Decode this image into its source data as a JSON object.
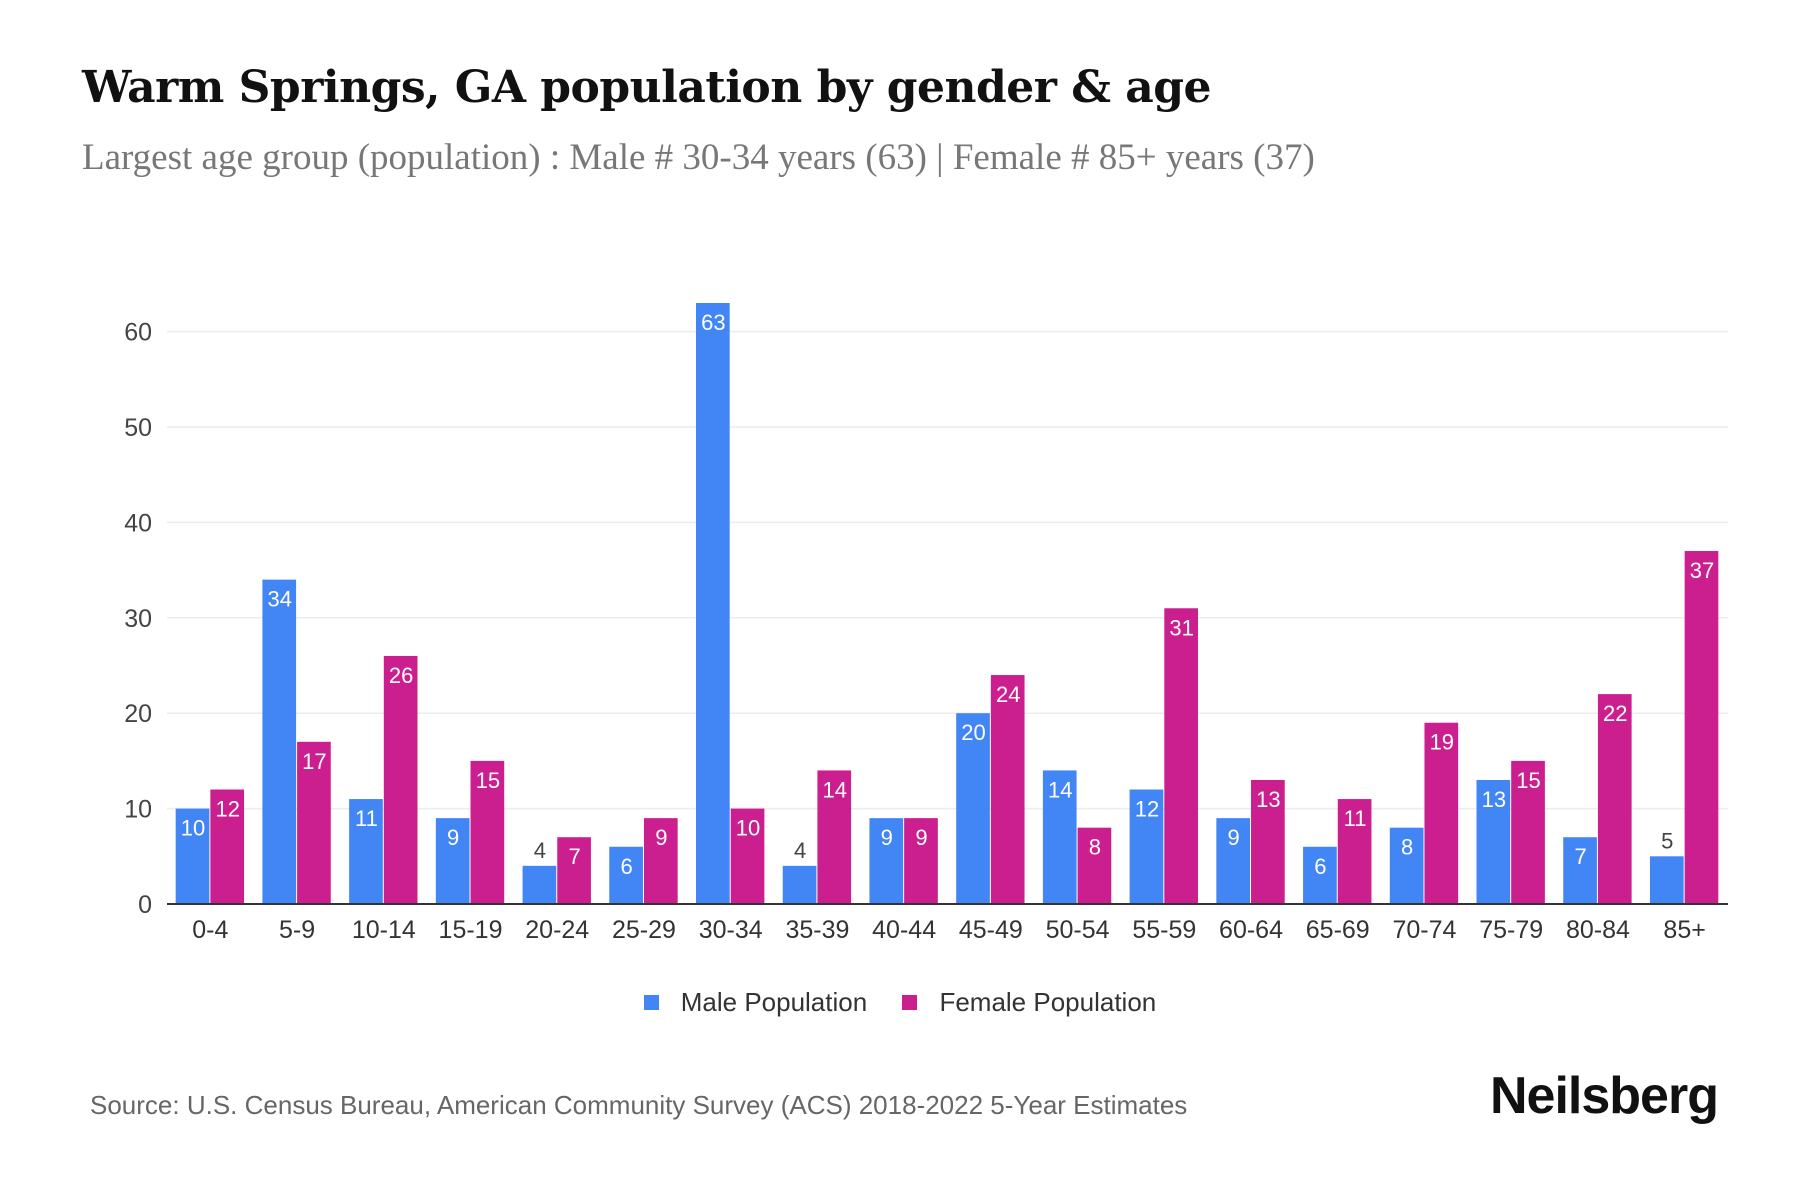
{
  "title": "Warm Springs, GA population by gender & age",
  "subtitle": "Largest age group (population) : Male # 30-34 years (63) | Female # 85+ years (37)",
  "source": "Source: U.S. Census Bureau, American Community Survey (ACS) 2018-2022 5-Year Estimates",
  "logo": "Neilsberg",
  "colors": {
    "male": "#4285F4",
    "female": "#CC1F8F"
  },
  "chart_data": {
    "type": "bar",
    "title": "Warm Springs, GA population by gender & age",
    "xlabel": "",
    "ylabel": "",
    "ylim": [
      0,
      63
    ],
    "yticks": [
      0,
      10,
      20,
      30,
      40,
      50,
      60
    ],
    "grid": true,
    "legend_position": "bottom",
    "categories": [
      "0-4",
      "5-9",
      "10-14",
      "15-19",
      "20-24",
      "25-29",
      "30-34",
      "35-39",
      "40-44",
      "45-49",
      "50-54",
      "55-59",
      "60-64",
      "65-69",
      "70-74",
      "75-79",
      "80-84",
      "85+"
    ],
    "series": [
      {
        "name": "Male Population",
        "values": [
          10,
          34,
          11,
          9,
          4,
          6,
          63,
          4,
          9,
          20,
          14,
          12,
          9,
          6,
          8,
          13,
          7,
          5
        ]
      },
      {
        "name": "Female Population",
        "values": [
          12,
          17,
          26,
          15,
          7,
          9,
          10,
          14,
          9,
          24,
          8,
          31,
          13,
          11,
          19,
          15,
          22,
          37
        ]
      }
    ]
  }
}
